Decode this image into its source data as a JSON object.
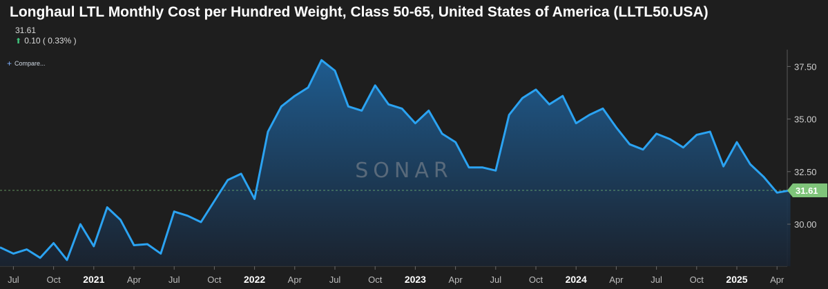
{
  "header": {
    "title": "Longhaul LTL Monthly Cost per Hundred Weight, Class 50-65, United States of America (LLTL50.USA)",
    "last_value": "31.61",
    "change_text": "0.10 ( 0.33% )",
    "compare_label": "Compare..."
  },
  "colors": {
    "line": "#2ba3f2",
    "area_top": "#1f5f95",
    "area_bottom": "#1a2330",
    "badge": "#7fc47a",
    "up": "#3fc07a",
    "background": "#1e1e1e"
  },
  "icons": {
    "change": "arrow-up-icon",
    "compare": "plus-icon"
  },
  "chart_data": {
    "type": "area",
    "title": "Longhaul LTL Monthly Cost per Hundred Weight, Class 50-65, United States of America (LLTL50.USA)",
    "x_tick_labels": [
      "Jul",
      "Oct",
      "2021",
      "Apr",
      "Jul",
      "Oct",
      "2022",
      "Apr",
      "Jul",
      "Oct",
      "2023",
      "Apr",
      "Jul",
      "Oct",
      "2024",
      "Apr",
      "Jul",
      "Oct",
      "2025",
      "Apr"
    ],
    "year_ticks": [
      "2021",
      "2022",
      "2023",
      "2024",
      "2025"
    ],
    "y_ticks": [
      30.0,
      32.5,
      35.0,
      37.5
    ],
    "ylim": [
      28.0,
      38.3
    ],
    "grid": false,
    "last_value_label": "31.61",
    "watermark": "SONAR",
    "series": [
      {
        "x": [
          "2020-06",
          "2020-07",
          "2020-08",
          "2020-09",
          "2020-10",
          "2020-11",
          "2020-12",
          "2021-01",
          "2021-02",
          "2021-03",
          "2021-04",
          "2021-05",
          "2021-06",
          "2021-07",
          "2021-08",
          "2021-09",
          "2021-10",
          "2021-11",
          "2021-12",
          "2022-01",
          "2022-02",
          "2022-03",
          "2022-04",
          "2022-05",
          "2022-06",
          "2022-07",
          "2022-08",
          "2022-09",
          "2022-10",
          "2022-11",
          "2022-12",
          "2023-01",
          "2023-02",
          "2023-03",
          "2023-04",
          "2023-05",
          "2023-06",
          "2023-07",
          "2023-08",
          "2023-09",
          "2023-10",
          "2023-11",
          "2023-12",
          "2024-01",
          "2024-02",
          "2024-03",
          "2024-04",
          "2024-05",
          "2024-06",
          "2024-07",
          "2024-08",
          "2024-09",
          "2024-10",
          "2024-11",
          "2024-12",
          "2025-01",
          "2025-02",
          "2025-03",
          "2025-04",
          "2025-05"
        ],
        "values": [
          28.9,
          28.6,
          28.8,
          28.4,
          29.1,
          28.3,
          30.0,
          28.95,
          30.8,
          30.2,
          29.0,
          29.05,
          28.6,
          30.6,
          30.4,
          30.1,
          31.1,
          32.1,
          32.4,
          31.2,
          34.4,
          35.6,
          36.1,
          36.5,
          37.8,
          37.3,
          35.6,
          35.4,
          36.6,
          35.7,
          35.5,
          34.8,
          35.4,
          34.3,
          33.9,
          32.7,
          32.7,
          32.55,
          35.2,
          36.0,
          36.4,
          35.7,
          36.1,
          34.8,
          35.2,
          35.5,
          34.6,
          33.8,
          33.55,
          34.3,
          34.05,
          33.65,
          34.25,
          34.4,
          32.75,
          33.9,
          32.85,
          32.25,
          31.5,
          31.61
        ]
      }
    ]
  }
}
